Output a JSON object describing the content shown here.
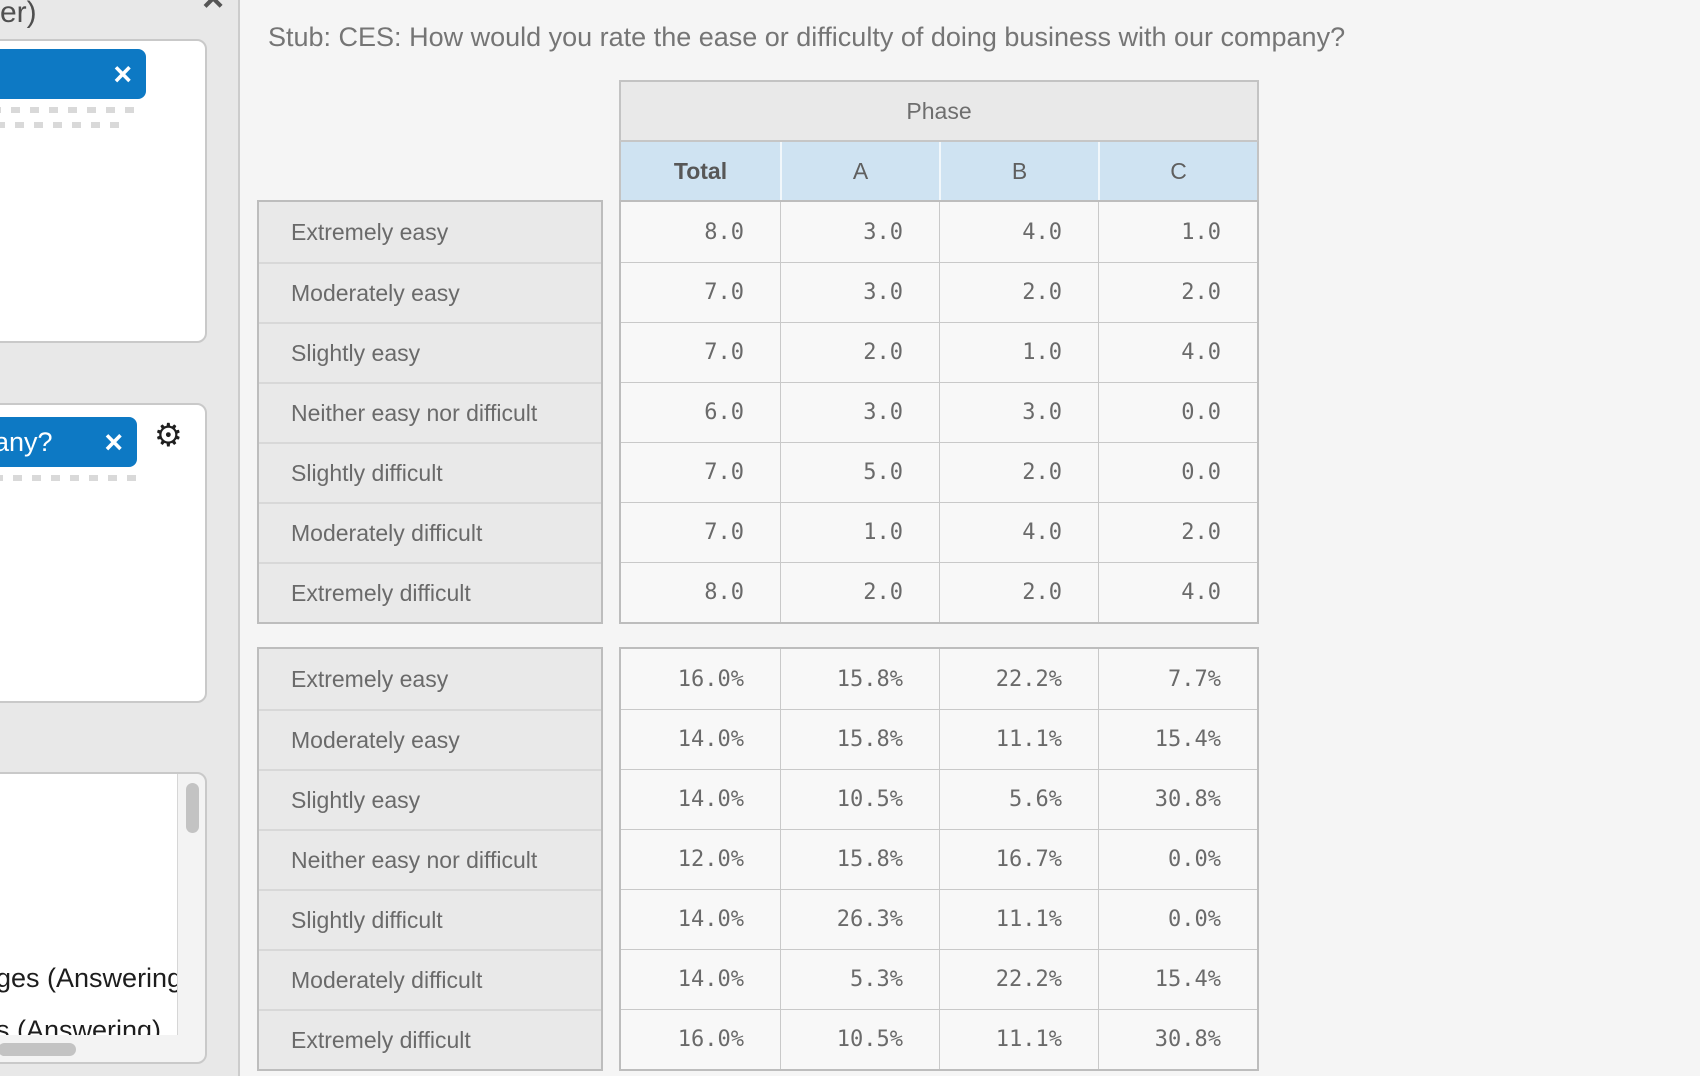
{
  "colors": {
    "accent_blue": "#0d79c4",
    "header_blue": "#cfe3f2",
    "panel_gray": "#e8e8e8",
    "main_bg": "#f5f5f5",
    "cell_bg": "#f8f8f8",
    "border_gray": "#c3c3c3",
    "text_gray": "#6e6e6e"
  },
  "sidebar": {
    "panel_title_fragment": "er)",
    "panel_close_glyph": "×",
    "card1": {
      "chip_close_glyph": "×"
    },
    "card2": {
      "chip_label_fragment": "any?",
      "chip_close_glyph": "×",
      "gear_glyph": "⚙"
    },
    "card3": {
      "items": [
        "ges (Answering",
        "s (Answering)"
      ]
    }
  },
  "main": {
    "stub_title": "Stub: CES: How would you rate the ease or difficulty of doing business with our company?",
    "crosstab": {
      "banner_label": "Phase",
      "columns": [
        "Total",
        "A",
        "B",
        "C"
      ],
      "row_labels": [
        "Extremely easy",
        "Moderately easy",
        "Slightly easy",
        "Neither easy nor difficult",
        "Slightly difficult",
        "Moderately difficult",
        "Extremely difficult"
      ],
      "counts": [
        [
          "8.0",
          "3.0",
          "4.0",
          "1.0"
        ],
        [
          "7.0",
          "3.0",
          "2.0",
          "2.0"
        ],
        [
          "7.0",
          "2.0",
          "1.0",
          "4.0"
        ],
        [
          "6.0",
          "3.0",
          "3.0",
          "0.0"
        ],
        [
          "7.0",
          "5.0",
          "2.0",
          "0.0"
        ],
        [
          "7.0",
          "1.0",
          "4.0",
          "2.0"
        ],
        [
          "8.0",
          "2.0",
          "2.0",
          "4.0"
        ]
      ],
      "percents": [
        [
          "16.0%",
          "15.8%",
          "22.2%",
          "7.7%"
        ],
        [
          "14.0%",
          "15.8%",
          "11.1%",
          "15.4%"
        ],
        [
          "14.0%",
          "10.5%",
          "5.6%",
          "30.8%"
        ],
        [
          "12.0%",
          "15.8%",
          "16.7%",
          "0.0%"
        ],
        [
          "14.0%",
          "26.3%",
          "11.1%",
          "0.0%"
        ],
        [
          "14.0%",
          "5.3%",
          "22.2%",
          "15.4%"
        ],
        [
          "16.0%",
          "10.5%",
          "11.1%",
          "30.8%"
        ]
      ]
    }
  }
}
